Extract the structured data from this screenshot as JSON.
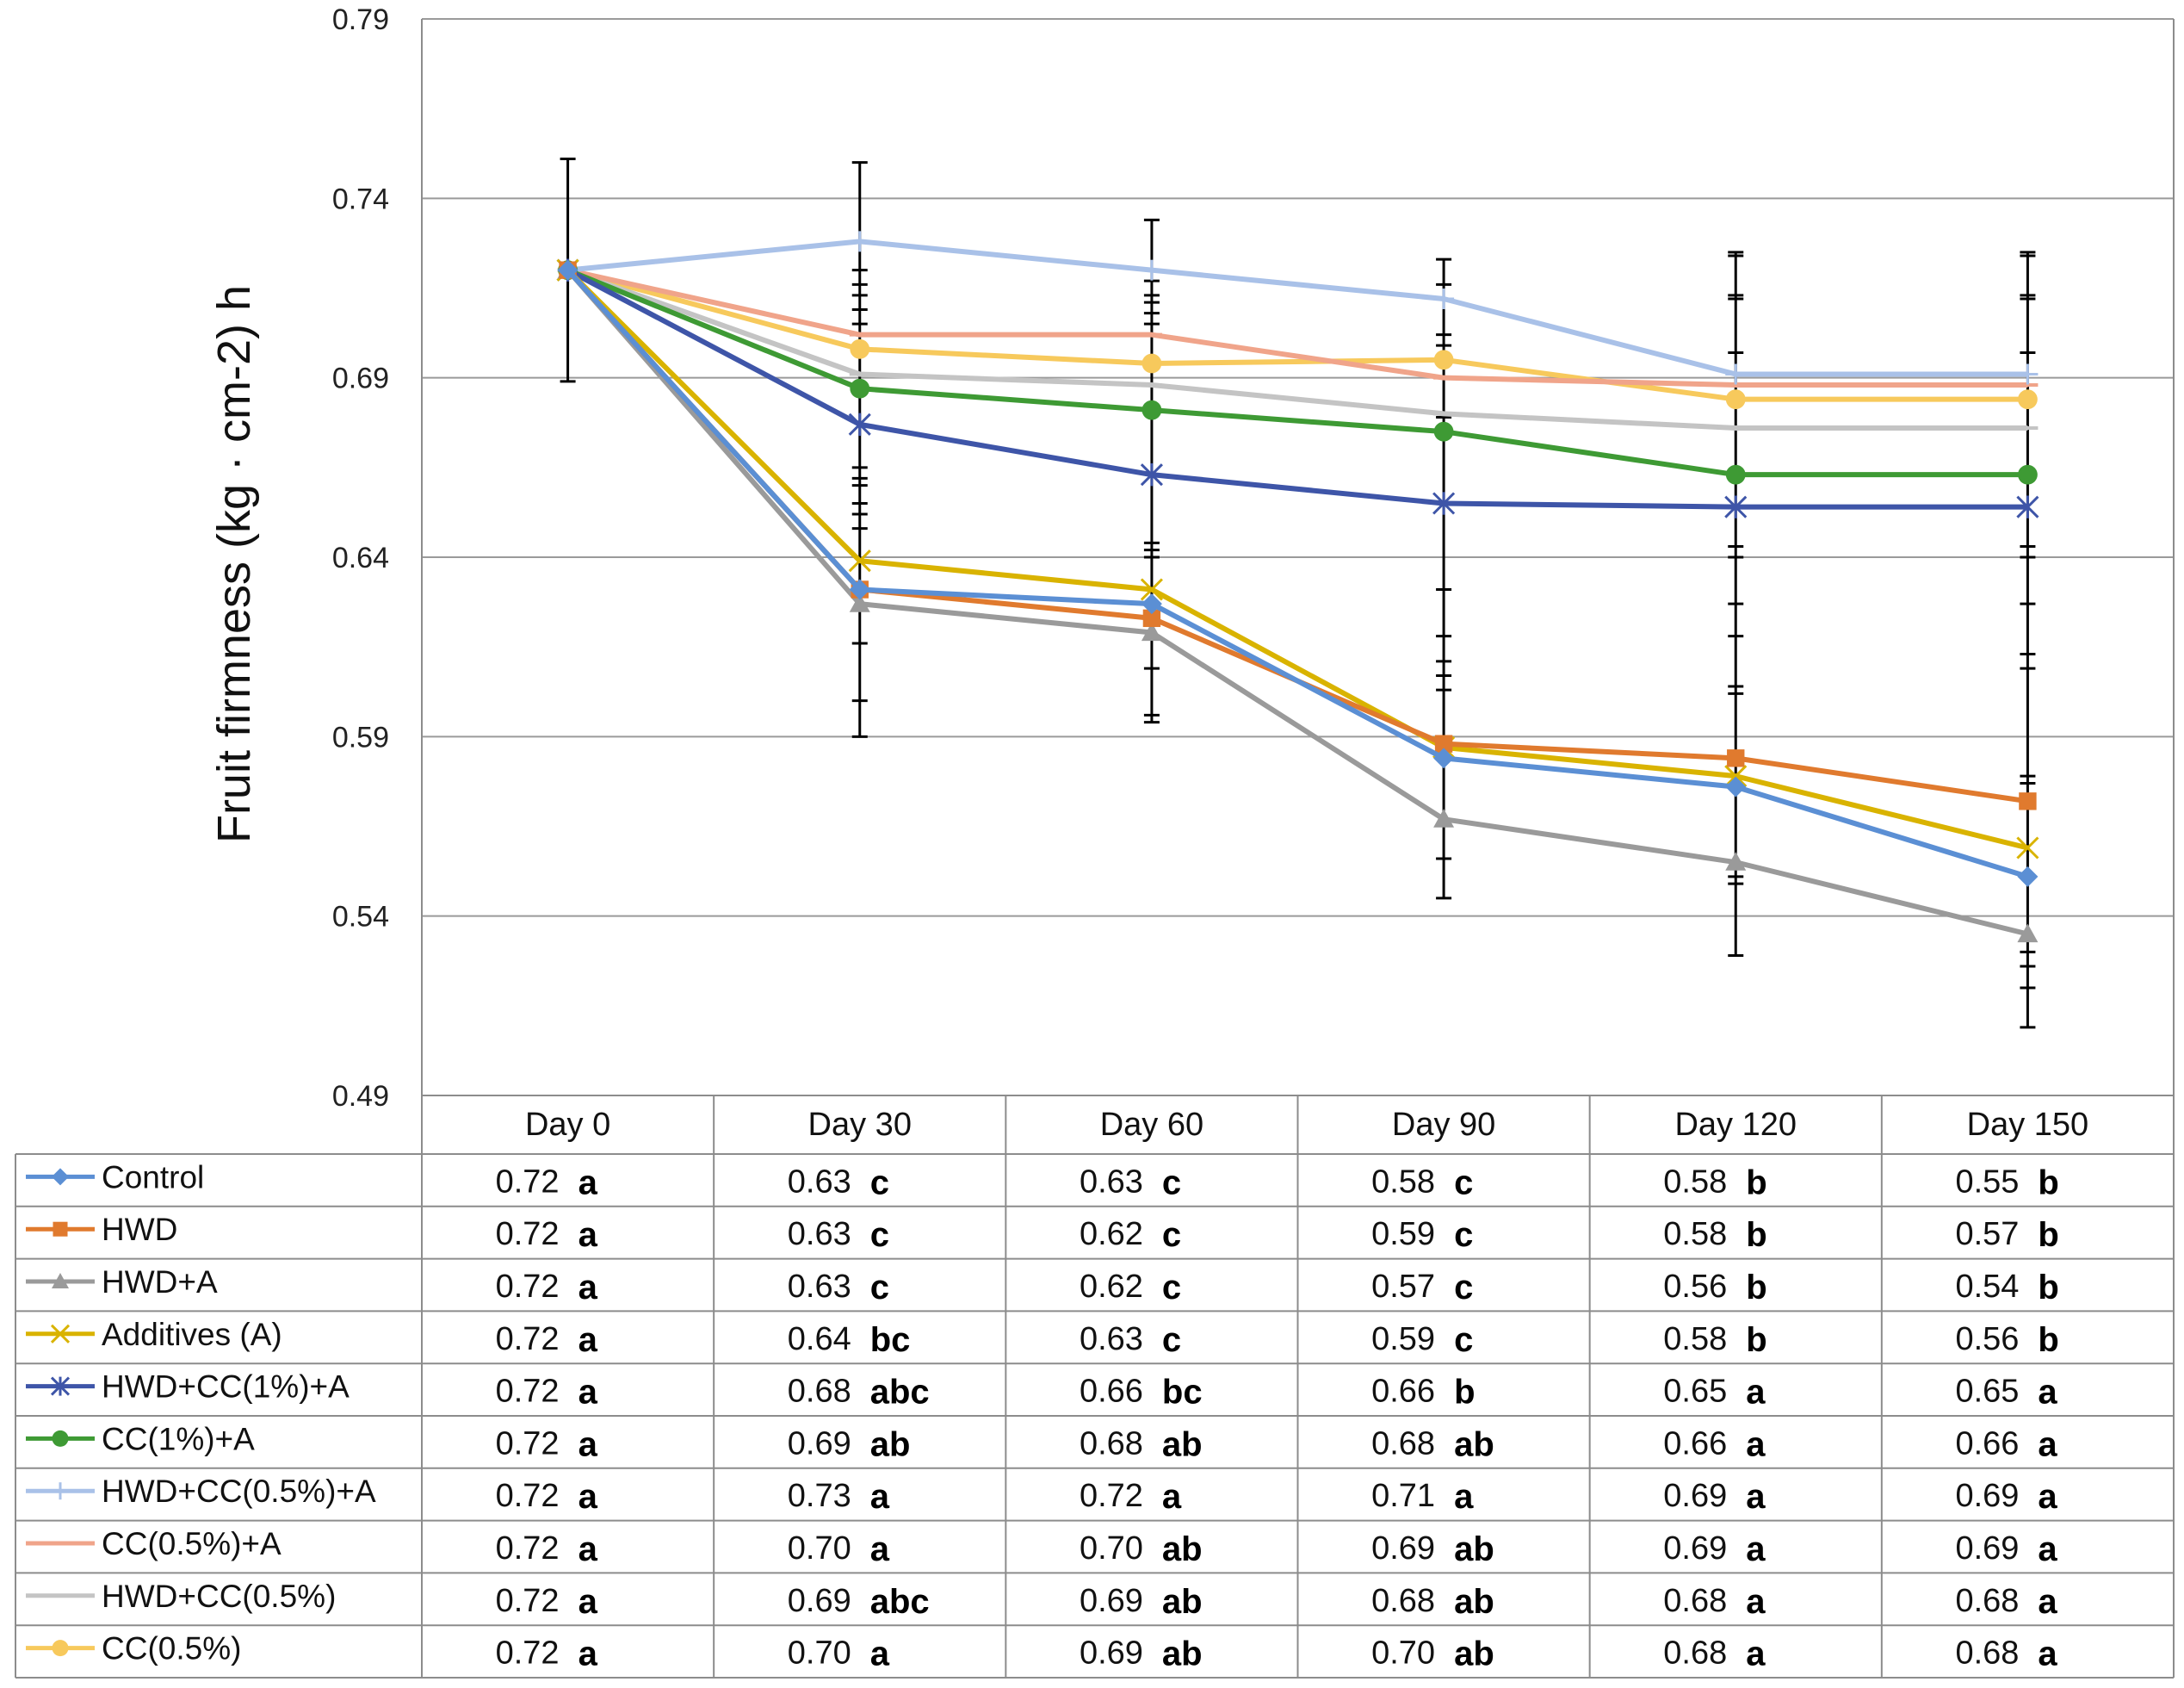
{
  "chart_data": {
    "type": "line",
    "ylabel": "Fruit firmness (kg · cm-2) h",
    "ylim": [
      0.49,
      0.79
    ],
    "yticks": [
      "0.79",
      "0.74",
      "0.69",
      "0.64",
      "0.59",
      "0.54",
      "0.49"
    ],
    "categories": [
      "Day 0",
      "Day 30",
      "Day 60",
      "Day 90",
      "Day 120",
      "Day 150"
    ],
    "grid": true,
    "legend": "data table below chart",
    "series": [
      {
        "name": "Control",
        "color": "#5b8fd4",
        "marker": "diamond",
        "values": [
          0.72,
          0.631,
          0.627,
          0.584,
          0.576,
          0.551
        ],
        "labels": [
          "0.72",
          "0.63",
          "0.63",
          "0.58",
          "0.58",
          "0.55"
        ],
        "groups": [
          "a",
          "c",
          "c",
          "c",
          "b",
          "b"
        ]
      },
      {
        "name": "HWD",
        "color": "#e07a2e",
        "marker": "square",
        "values": [
          0.72,
          0.631,
          0.623,
          0.588,
          0.584,
          0.572
        ],
        "labels": [
          "0.72",
          "0.63",
          "0.62",
          "0.59",
          "0.58",
          "0.57"
        ],
        "groups": [
          "a",
          "c",
          "c",
          "c",
          "b",
          "b"
        ]
      },
      {
        "name": "HWD+A",
        "color": "#9a9a9a",
        "marker": "triangle",
        "values": [
          0.72,
          0.627,
          0.619,
          0.567,
          0.555,
          0.535
        ],
        "labels": [
          "0.72",
          "0.63",
          "0.62",
          "0.57",
          "0.56",
          "0.54"
        ],
        "groups": [
          "a",
          "c",
          "c",
          "c",
          "b",
          "b"
        ]
      },
      {
        "name": "Additives (A)",
        "color": "#d9b300",
        "marker": "x",
        "values": [
          0.72,
          0.639,
          0.631,
          0.587,
          0.579,
          0.559
        ],
        "labels": [
          "0.72",
          "0.64",
          "0.63",
          "0.59",
          "0.58",
          "0.56"
        ],
        "groups": [
          "a",
          "bc",
          "c",
          "c",
          "b",
          "b"
        ]
      },
      {
        "name": "HWD+CC(1%)+A",
        "color": "#3e55a8",
        "marker": "star",
        "values": [
          0.72,
          0.677,
          0.663,
          0.655,
          0.654,
          0.654
        ],
        "labels": [
          "0.72",
          "0.68",
          "0.66",
          "0.66",
          "0.65",
          "0.65"
        ],
        "groups": [
          "a",
          "abc",
          "bc",
          "b",
          "a",
          "a"
        ]
      },
      {
        "name": "CC(1%)+A",
        "color": "#3e9a34",
        "marker": "circle",
        "values": [
          0.72,
          0.687,
          0.681,
          0.675,
          0.663,
          0.663
        ],
        "labels": [
          "0.72",
          "0.69",
          "0.68",
          "0.68",
          "0.66",
          "0.66"
        ],
        "groups": [
          "a",
          "ab",
          "ab",
          "ab",
          "a",
          "a"
        ]
      },
      {
        "name": "HWD+CC(0.5%)+A",
        "color": "#a9c1e8",
        "marker": "plus",
        "values": [
          0.72,
          0.728,
          0.72,
          0.712,
          0.691,
          0.691
        ],
        "labels": [
          "0.72",
          "0.73",
          "0.72",
          "0.71",
          "0.69",
          "0.69"
        ],
        "groups": [
          "a",
          "a",
          "a",
          "a",
          "a",
          "a"
        ]
      },
      {
        "name": "CC(0.5%)+A",
        "color": "#f0a48a",
        "marker": "dash",
        "values": [
          0.72,
          0.702,
          0.702,
          0.69,
          0.688,
          0.688
        ],
        "labels": [
          "0.72",
          "0.70",
          "0.70",
          "0.69",
          "0.69",
          "0.69"
        ],
        "groups": [
          "a",
          "a",
          "ab",
          "ab",
          "a",
          "a"
        ]
      },
      {
        "name": "HWD+CC(0.5%)",
        "color": "#c4c4c4",
        "marker": "dash",
        "values": [
          0.72,
          0.691,
          0.688,
          0.68,
          0.676,
          0.676
        ],
        "labels": [
          "0.72",
          "0.69",
          "0.69",
          "0.68",
          "0.68",
          "0.68"
        ],
        "groups": [
          "a",
          "abc",
          "ab",
          "ab",
          "a",
          "a"
        ]
      },
      {
        "name": "CC(0.5%)",
        "color": "#f7c95c",
        "marker": "circle",
        "values": [
          0.72,
          0.698,
          0.694,
          0.695,
          0.684,
          0.684
        ],
        "labels": [
          "0.72",
          "0.70",
          "0.69",
          "0.70",
          "0.68",
          "0.68"
        ],
        "groups": [
          "a",
          "a",
          "ab",
          "ab",
          "a",
          "a"
        ]
      }
    ],
    "error_bars": [
      {
        "day": "Day 0",
        "low": 0.689,
        "high": 0.751,
        "caps": [
          0.751,
          0.689
        ]
      },
      {
        "day": "Day 30",
        "low": 0.59,
        "high": 0.75,
        "caps": [
          0.75,
          0.72,
          0.716,
          0.713,
          0.709,
          0.705,
          0.665,
          0.662,
          0.66,
          0.655,
          0.652,
          0.648,
          0.616,
          0.6,
          0.59
        ]
      },
      {
        "day": "Day 60",
        "low": 0.594,
        "high": 0.734,
        "caps": [
          0.734,
          0.717,
          0.713,
          0.711,
          0.708,
          0.705,
          0.644,
          0.642,
          0.64,
          0.609,
          0.596,
          0.594
        ]
      },
      {
        "day": "Day 90",
        "low": 0.545,
        "high": 0.723,
        "caps": [
          0.723,
          0.716,
          0.702,
          0.699,
          0.68,
          0.679,
          0.631,
          0.618,
          0.611,
          0.607,
          0.603,
          0.556,
          0.545
        ]
      },
      {
        "day": "Day 120",
        "low": 0.529,
        "high": 0.725,
        "caps": [
          0.725,
          0.724,
          0.713,
          0.712,
          0.697,
          0.643,
          0.64,
          0.627,
          0.618,
          0.604,
          0.602,
          0.551,
          0.549,
          0.529
        ]
      },
      {
        "day": "Day 150",
        "low": 0.509,
        "high": 0.725,
        "caps": [
          0.725,
          0.724,
          0.713,
          0.712,
          0.697,
          0.643,
          0.64,
          0.627,
          0.613,
          0.609,
          0.579,
          0.577,
          0.53,
          0.526,
          0.52,
          0.509
        ]
      }
    ]
  }
}
